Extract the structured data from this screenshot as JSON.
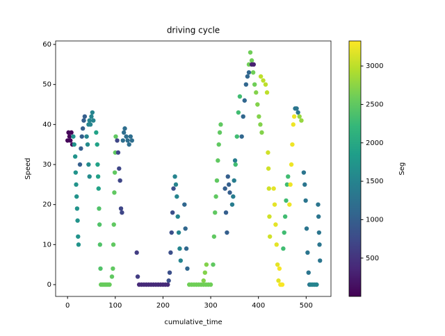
{
  "chart_data": {
    "type": "scatter",
    "title": "driving cycle",
    "xlabel": "cumulative_time",
    "ylabel": "Speed",
    "xlim": [
      -25,
      552
    ],
    "ylim": [
      -2.95,
      60.87
    ],
    "xticks": [
      0,
      100,
      200,
      300,
      400,
      500
    ],
    "yticks": [
      0,
      10,
      20,
      30,
      40,
      50,
      60
    ],
    "colorbar": {
      "label": "Seg",
      "lim": [
        1,
        3326
      ],
      "ticks": [
        500,
        1000,
        1500,
        2000,
        2500,
        3000
      ],
      "colormap": "viridis"
    },
    "series": [
      {
        "seg": 50,
        "x": [
          0,
          2,
          4,
          6,
          8,
          10
        ],
        "values": [
          36,
          38,
          37,
          36,
          38,
          35
        ]
      },
      {
        "seg": 1700,
        "x": [
          12,
          14,
          16,
          17,
          18,
          19,
          20,
          21,
          22,
          23
        ],
        "values": [
          37,
          35,
          32,
          28,
          25,
          22,
          19,
          16,
          12,
          10
        ]
      },
      {
        "seg": 1000,
        "x": [
          26,
          28,
          30,
          32,
          34,
          36
        ],
        "values": [
          30,
          34,
          37,
          39,
          41,
          42
        ]
      },
      {
        "seg": 1500,
        "x": [
          40,
          44,
          46,
          48,
          50,
          52,
          54
        ],
        "values": [
          37,
          40,
          41,
          40,
          42,
          43,
          41
        ]
      },
      {
        "seg": 1600,
        "x": [
          42,
          44,
          46
        ],
        "values": [
          35,
          30,
          27
        ]
      },
      {
        "seg": 1900,
        "x": [
          60,
          62,
          63,
          64,
          65
        ],
        "values": [
          38,
          35,
          30,
          27,
          24
        ]
      },
      {
        "seg": 2400,
        "x": [
          66,
          67,
          68,
          69
        ],
        "values": [
          19,
          15,
          10,
          4
        ]
      },
      {
        "seg": 2550,
        "x": [
          70,
          73,
          76,
          79,
          82,
          85,
          88
        ],
        "values": [
          0,
          0,
          0,
          0,
          0,
          0,
          0
        ]
      },
      {
        "seg": 2500,
        "x": [
          93,
          95,
          96,
          97,
          98,
          99,
          100,
          101
        ],
        "values": [
          2,
          4,
          10,
          15,
          23,
          28,
          33,
          37
        ]
      },
      {
        "seg": 700,
        "x": [
          104,
          106,
          108,
          110,
          112,
          114
        ],
        "values": [
          36,
          33,
          29,
          26,
          19,
          18
        ]
      },
      {
        "seg": 1200,
        "x": [
          116,
          118,
          120,
          123,
          126,
          129,
          132,
          135
        ],
        "values": [
          36,
          38,
          39,
          37,
          36,
          35,
          37,
          36
        ]
      },
      {
        "seg": 600,
        "x": [
          145,
          147
        ],
        "values": [
          8,
          2
        ]
      },
      {
        "seg": 400,
        "x": [
          150,
          155,
          160,
          165,
          170,
          175,
          180,
          185,
          190,
          195,
          200,
          205,
          210
        ],
        "values": [
          0,
          0,
          0,
          0,
          0,
          0,
          0,
          0,
          0,
          0,
          0,
          0,
          0
        ]
      },
      {
        "seg": 800,
        "x": [
          212,
          214,
          216,
          218,
          220,
          222
        ],
        "values": [
          1,
          3,
          8,
          13,
          18,
          24
        ]
      },
      {
        "seg": 1500,
        "x": [
          225,
          227,
          229,
          231,
          233,
          235,
          237
        ],
        "values": [
          27,
          25,
          22,
          17,
          13,
          9,
          6
        ]
      },
      {
        "seg": 1100,
        "x": [
          245,
          247,
          249,
          251
        ],
        "values": [
          20,
          14,
          9,
          4
        ]
      },
      {
        "seg": 2600,
        "x": [
          255,
          260,
          265,
          270,
          275,
          280,
          285,
          290,
          295,
          300
        ],
        "values": [
          0,
          0,
          0,
          0,
          0,
          0,
          0,
          0,
          0,
          0
        ]
      },
      {
        "seg": 2700,
        "x": [
          285,
          288,
          291
        ],
        "values": [
          1,
          3,
          5
        ]
      },
      {
        "seg": 2500,
        "x": [
          305,
          307,
          309,
          311,
          313,
          315,
          317,
          319,
          321
        ],
        "values": [
          5,
          12,
          18,
          22,
          26,
          31,
          35,
          38,
          40
        ]
      },
      {
        "seg": 1000,
        "x": [
          330,
          332,
          334,
          336,
          338,
          340
        ],
        "values": [
          24,
          18,
          13,
          27,
          25,
          23
        ]
      },
      {
        "seg": 1400,
        "x": [
          345,
          347,
          349,
          351
        ],
        "values": [
          20,
          22,
          26,
          31
        ]
      },
      {
        "seg": 2300,
        "x": [
          352,
          355,
          358,
          361
        ],
        "values": [
          30,
          37,
          43,
          47
        ]
      },
      {
        "seg": 1100,
        "x": [
          365,
          368,
          371,
          374,
          377,
          380
        ],
        "values": [
          37,
          42,
          46,
          50,
          52,
          53
        ]
      },
      {
        "seg": 2600,
        "x": [
          380,
          383,
          386,
          389,
          392
        ],
        "values": [
          55,
          58,
          56,
          53,
          50
        ]
      },
      {
        "seg": 300,
        "x": [
          386,
          390
        ],
        "values": [
          55,
          55
        ]
      },
      {
        "seg": 2700,
        "x": [
          395,
          398,
          401,
          404,
          407
        ],
        "values": [
          48,
          45,
          42,
          40,
          38
        ]
      },
      {
        "seg": 3000,
        "x": [
          405,
          410,
          415,
          418
        ],
        "values": [
          52,
          51,
          50,
          48
        ]
      },
      {
        "seg": 3100,
        "x": [
          420,
          421,
          422,
          423,
          424
        ],
        "values": [
          33,
          29,
          24,
          17,
          12
        ]
      },
      {
        "seg": 3200,
        "x": [
          432,
          434,
          436,
          438,
          440,
          442
        ],
        "values": [
          24,
          20,
          15,
          10,
          5,
          1
        ]
      },
      {
        "seg": 3300,
        "x": [
          444,
          446,
          448,
          450
        ],
        "values": [
          4,
          0,
          0,
          0
        ]
      },
      {
        "seg": 2300,
        "x": [
          452,
          454,
          456,
          458,
          460,
          462
        ],
        "values": [
          9,
          13,
          17,
          21,
          25,
          27
        ]
      },
      {
        "seg": 3250,
        "x": [
          465,
          467,
          469,
          471,
          473,
          475
        ],
        "values": [
          20,
          25,
          30,
          35,
          40,
          42
        ]
      },
      {
        "seg": 1300,
        "x": [
          477,
          480,
          483
        ],
        "values": [
          44,
          44,
          43
        ]
      },
      {
        "seg": 2800,
        "x": [
          486,
          490
        ],
        "values": [
          42,
          41
        ]
      },
      {
        "seg": 1300,
        "x": [
          495,
          497,
          499,
          501,
          503,
          505,
          507
        ],
        "values": [
          28,
          25,
          21,
          14,
          8,
          3,
          0
        ]
      },
      {
        "seg": 1500,
        "x": [
          510,
          514,
          518,
          522
        ],
        "values": [
          0,
          0,
          0,
          0
        ]
      },
      {
        "seg": 1300,
        "x": [
          525,
          526,
          527,
          528,
          529
        ],
        "values": [
          20,
          17,
          13,
          10,
          6
        ]
      }
    ]
  }
}
